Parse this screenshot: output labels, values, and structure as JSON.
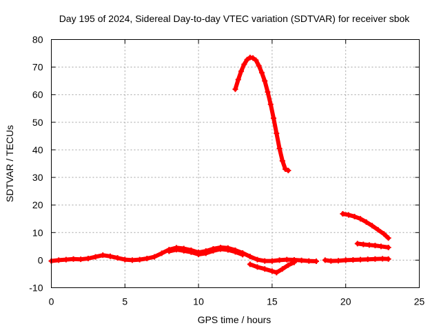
{
  "chart_data": {
    "type": "line",
    "title": "Day 195 of 2024, Sidereal Day-to-day VTEC variation (SDTVAR) for receiver sbok",
    "xlabel": "GPS time / hours",
    "ylabel": "SDTVAR / TECUs",
    "xlim": [
      0,
      25
    ],
    "ylim": [
      -10,
      80
    ],
    "xticks": [
      0,
      5,
      10,
      15,
      20,
      25
    ],
    "yticks": [
      -10,
      0,
      10,
      20,
      30,
      40,
      50,
      60,
      70,
      80
    ],
    "grid": true,
    "legend": "none",
    "color": "#ff0000",
    "series": [
      {
        "name": "main baseline arc",
        "x": [
          0,
          0.5,
          1,
          1.5,
          2,
          2.5,
          3,
          3.5,
          4,
          4.5,
          5,
          5.5,
          6,
          6.5,
          7,
          7.5,
          8,
          8.5,
          9,
          9.5,
          10,
          10.5,
          11,
          11.5,
          12,
          12.5,
          13,
          13.5,
          14,
          14.5,
          15,
          15.5,
          16,
          16.5,
          17,
          17.5,
          18
        ],
        "values": [
          -0.3,
          0,
          0.2,
          0.4,
          0.3,
          0.6,
          1.2,
          1.8,
          1.4,
          0.8,
          0.2,
          0,
          0.2,
          0.6,
          1.2,
          2.5,
          3.8,
          4.5,
          4.2,
          3.6,
          2.8,
          3.3,
          4.1,
          4.6,
          4.4,
          3.6,
          2.6,
          1.3,
          0.2,
          -0.3,
          -0.3,
          0,
          0.2,
          0.1,
          -0.1,
          -0.3,
          -0.4
        ]
      },
      {
        "name": "main baseline arc (noise band)",
        "x": [
          8,
          8.5,
          9,
          9.5,
          10,
          10.5,
          11,
          11.5,
          12,
          12.5,
          13
        ],
        "values": [
          3.2,
          3.8,
          3.4,
          2.9,
          2.1,
          2.5,
          3.4,
          4.0,
          3.7,
          3.0,
          2.0
        ]
      },
      {
        "name": "evening baseline arc",
        "x": [
          18.6,
          19,
          19.5,
          20,
          20.5,
          21,
          21.5,
          22,
          22.5,
          22.9
        ],
        "values": [
          0,
          -0.3,
          -0.2,
          0,
          0.1,
          0.2,
          0.3,
          0.4,
          0.5,
          0.4
        ]
      },
      {
        "name": "negative dip arc",
        "x": [
          13.5,
          14,
          14.5,
          15,
          15.3,
          15.7,
          16.1,
          16.5
        ],
        "values": [
          -1.5,
          -2.5,
          -3.2,
          -4.0,
          -4.5,
          -3.2,
          -1.8,
          -0.8
        ]
      },
      {
        "name": "large spike arc",
        "x": [
          12.5,
          12.7,
          12.9,
          13.1,
          13.3,
          13.5,
          13.7,
          13.9,
          14.1,
          14.3,
          14.5,
          14.7,
          14.9,
          15.1,
          15.3,
          15.5,
          15.7,
          15.9,
          16.1
        ],
        "values": [
          62,
          65.5,
          68.5,
          71,
          72.7,
          73.5,
          73.3,
          72.5,
          70.5,
          68,
          65,
          61,
          56.5,
          51.5,
          46,
          40.5,
          36,
          33,
          32.5
        ]
      },
      {
        "name": "late descending arc",
        "x": [
          19.8,
          20.2,
          20.6,
          21,
          21.4,
          21.8,
          22.2,
          22.6,
          22.9
        ],
        "values": [
          16.8,
          16.4,
          15.8,
          15,
          13.8,
          12.5,
          11,
          9.5,
          8
        ]
      },
      {
        "name": "late flat arc",
        "x": [
          20.8,
          21.2,
          21.6,
          22,
          22.4,
          22.9
        ],
        "values": [
          6,
          5.7,
          5.5,
          5.3,
          5,
          4.6
        ]
      }
    ]
  }
}
